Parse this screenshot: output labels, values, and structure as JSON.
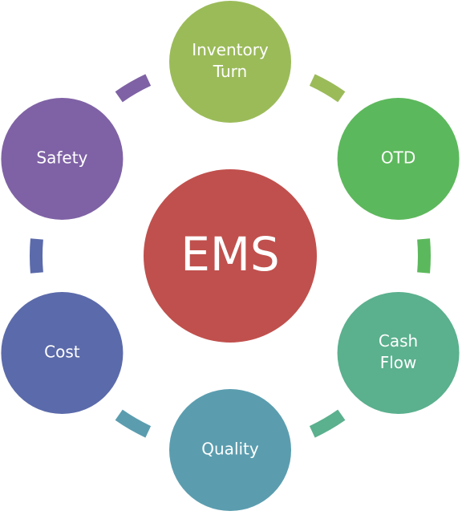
{
  "center": {
    "label": "EMS",
    "color": "#c0504d"
  },
  "nodes": [
    {
      "id": "inventory-turn",
      "lines": [
        "Inventory",
        "Turn"
      ],
      "color": "#9bbb59"
    },
    {
      "id": "otd",
      "lines": [
        "OTD"
      ],
      "color": "#5cb85c"
    },
    {
      "id": "cash-flow",
      "lines": [
        "Cash",
        "Flow"
      ],
      "color": "#5bb08e"
    },
    {
      "id": "quality",
      "lines": [
        "Quality"
      ],
      "color": "#5b9daf"
    },
    {
      "id": "cost",
      "lines": [
        "Cost"
      ],
      "color": "#5b6aaa"
    },
    {
      "id": "safety",
      "lines": [
        "Safety"
      ],
      "color": "#7f62a5"
    }
  ],
  "connectors": [
    {
      "from": "inventory-turn",
      "to": "otd",
      "color": "#9bbb59"
    },
    {
      "from": "otd",
      "to": "cash-flow",
      "color": "#5cb85c"
    },
    {
      "from": "cash-flow",
      "to": "quality",
      "color": "#5bb08e"
    },
    {
      "from": "quality",
      "to": "cost",
      "color": "#5b9daf"
    },
    {
      "from": "cost",
      "to": "safety",
      "color": "#5b6aaa"
    },
    {
      "from": "safety",
      "to": "inventory-turn",
      "color": "#7f62a5"
    }
  ]
}
